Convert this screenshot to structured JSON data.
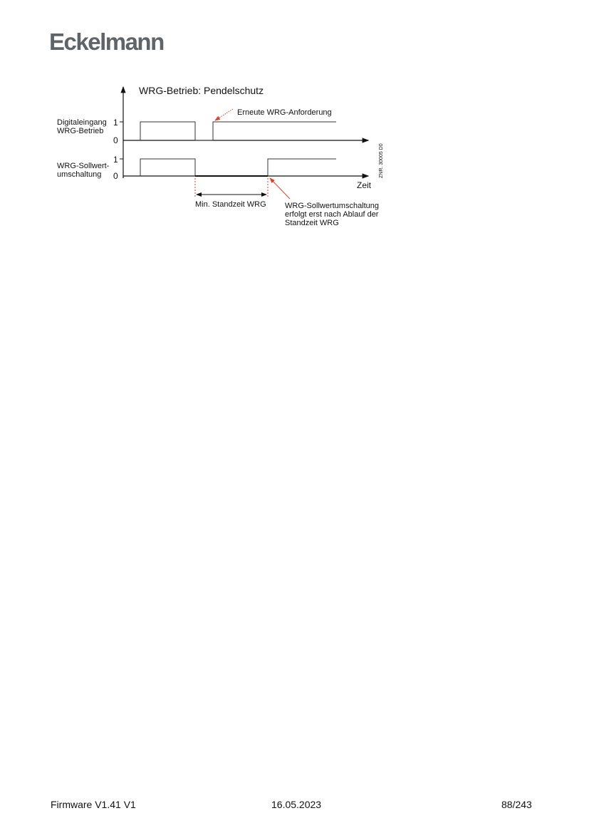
{
  "header": {
    "logo": "Eckelmann"
  },
  "diagram": {
    "title": "WRG-Betrieb: Pendelschutz",
    "signal1_label": [
      "Digitaleingang",
      "WRG-Betrieb"
    ],
    "signal2_label": [
      "WRG-Sollwert-",
      "umschaltung"
    ],
    "level_high": "1",
    "level_low": "0",
    "time_axis_label": "Zeit",
    "annotation_request": "Erneute WRG-Anforderung",
    "annotation_min_time": "Min. Standzeit WRG",
    "annotation_switch": [
      "WRG-Sollwertumschaltung",
      "erfolgt erst nach Ablauf der",
      "Standzeit WRG"
    ],
    "drawing_number": "ZNR. 30005 D0",
    "accent_color": "#d9432b"
  },
  "footer": {
    "left": "Firmware V1.41 V1",
    "center": "16.05.2023",
    "right": "88/243"
  }
}
